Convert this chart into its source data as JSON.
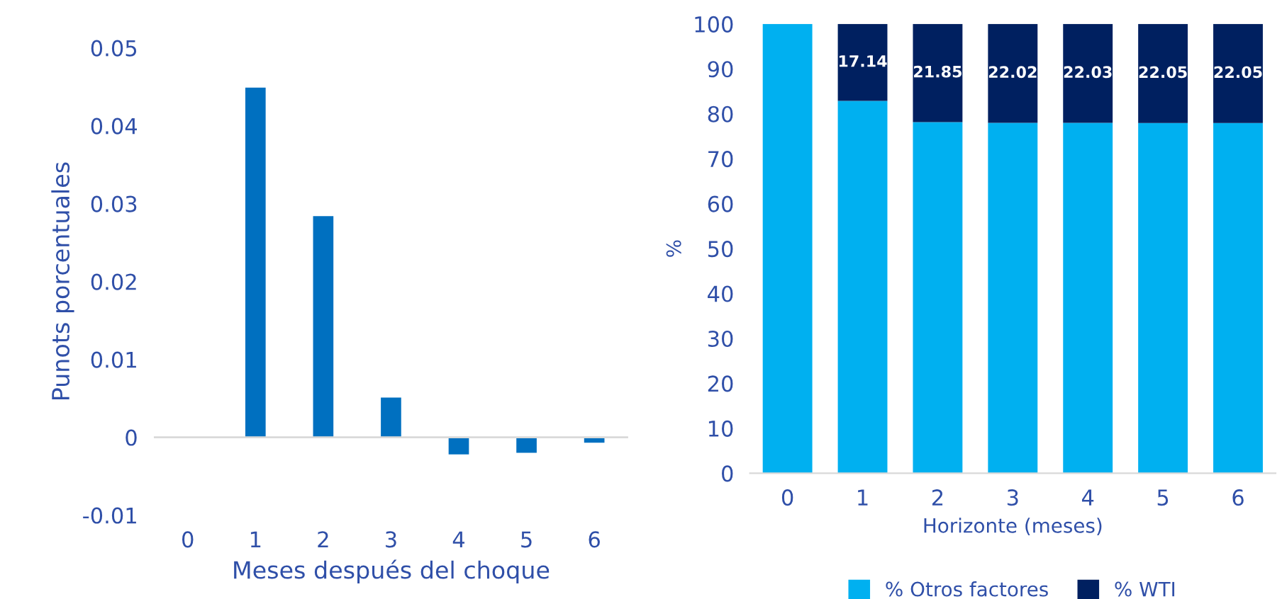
{
  "chart_data": [
    {
      "type": "bar",
      "ylabel": "Punots porcentuales",
      "xlabel": "Meses después del choque",
      "categories": [
        "0",
        "1",
        "2",
        "3",
        "4",
        "5",
        "6"
      ],
      "values": [
        0,
        0.0449,
        0.0284,
        0.0051,
        -0.0022,
        -0.002,
        -0.0007
      ],
      "color": "#0070c0",
      "ylim": [
        -0.01,
        0.05
      ],
      "yticks": [
        -0.01,
        0,
        0.01,
        0.02,
        0.03,
        0.04,
        0.05
      ],
      "ref_lines": [
        {
          "axis": "y",
          "value": 0,
          "color": "#d9d9d9"
        }
      ],
      "grid": false,
      "legend": false
    },
    {
      "type": "bar",
      "stacked": true,
      "ylabel": "%",
      "xlabel": "Horizonte (meses)",
      "categories": [
        "0",
        "1",
        "2",
        "3",
        "4",
        "5",
        "6"
      ],
      "series": [
        {
          "name": "% Otros factores",
          "color": "#00b0f0",
          "values": [
            100,
            82.86,
            78.15,
            77.98,
            77.97,
            77.95,
            77.95
          ]
        },
        {
          "name": "% WTI",
          "color": "#002060",
          "values": [
            0,
            17.14,
            21.85,
            22.02,
            22.03,
            22.05,
            22.05
          ],
          "value_labels": [
            null,
            "17.14",
            "21.85",
            "22.02",
            "22.03",
            "22.05",
            "22.05"
          ]
        }
      ],
      "ylim": [
        0,
        100
      ],
      "yticks": [
        0,
        10,
        20,
        30,
        40,
        50,
        60,
        70,
        80,
        90,
        100
      ],
      "grid": false,
      "legend": "bottom"
    }
  ]
}
